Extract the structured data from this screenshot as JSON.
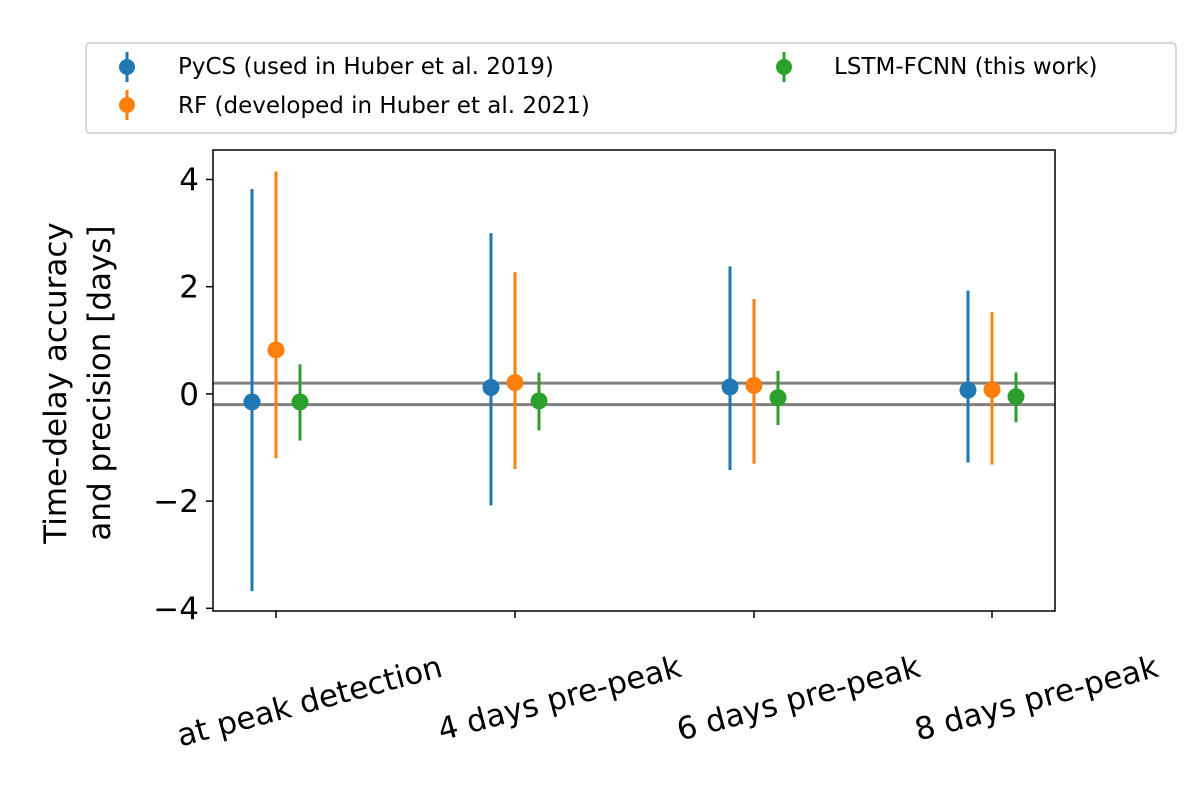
{
  "chart_data": {
    "type": "errorbar",
    "title": "",
    "xlabel": "",
    "ylabel": [
      "Time-delay accuracy",
      "and precision [days]"
    ],
    "categories": [
      "at peak detection",
      "4 days pre-peak",
      "6 days pre-peak",
      "8 days pre-peak"
    ],
    "ylim": [
      -4.05,
      4.55
    ],
    "yticks": [
      -4,
      -2,
      0,
      2,
      4
    ],
    "ytick_labels": [
      "−4",
      "−2",
      "0",
      "2",
      "4"
    ],
    "reference_lines": [
      0.2,
      -0.2
    ],
    "reference_line_color": "#808080",
    "grid": false,
    "legend_position": "top, above plot",
    "series": [
      {
        "name": "PyCS (used in Huber et al. 2019)",
        "color": "#1f77b4",
        "values": [
          -0.15,
          0.12,
          0.13,
          0.07
        ],
        "lower": [
          -3.68,
          -2.08,
          -1.42,
          -1.28
        ],
        "upper": [
          3.82,
          3.0,
          2.38,
          1.93
        ]
      },
      {
        "name": "RF (developed in Huber et al. 2021)",
        "color": "#ff7f0e",
        "values": [
          0.82,
          0.21,
          0.16,
          0.08
        ],
        "lower": [
          -1.2,
          -1.4,
          -1.3,
          -1.32
        ],
        "upper": [
          4.15,
          2.27,
          1.77,
          1.53
        ]
      },
      {
        "name": "LSTM-FCNN (this work)",
        "color": "#2ca02c",
        "values": [
          -0.15,
          -0.13,
          -0.07,
          -0.05
        ],
        "lower": [
          -0.87,
          -0.68,
          -0.58,
          -0.53
        ],
        "upper": [
          0.55,
          0.4,
          0.43,
          0.4
        ]
      }
    ]
  }
}
